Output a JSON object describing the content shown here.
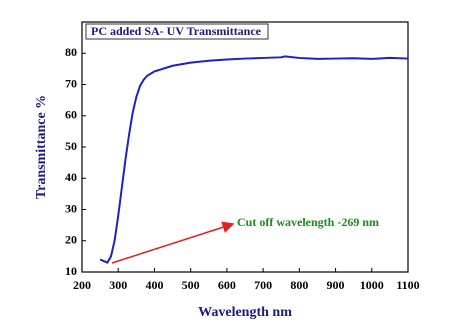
{
  "chart_data": {
    "type": "line",
    "title": "PC  added SA- UV Transmittance",
    "x_label": "Wavelength nm",
    "y_label": "Transmittance %",
    "annotation": "Cut off wavelength -269 nm",
    "x": [
      250,
      260,
      270,
      280,
      290,
      300,
      310,
      320,
      330,
      340,
      350,
      360,
      370,
      380,
      400,
      450,
      500,
      550,
      600,
      650,
      700,
      750,
      760,
      800,
      850,
      900,
      950,
      1000,
      1050,
      1100
    ],
    "series": [
      {
        "name": "PC added SA",
        "color": "#1f1fcc",
        "values": [
          14,
          13.5,
          13,
          15,
          20,
          28,
          37,
          46,
          54,
          61,
          66,
          69.5,
          71.5,
          72.8,
          74.2,
          76,
          77,
          77.6,
          78,
          78.3,
          78.5,
          78.7,
          79,
          78.5,
          78.2,
          78.3,
          78.4,
          78.2,
          78.5,
          78.3
        ]
      }
    ],
    "xlim": [
      200,
      1100
    ],
    "ylim": [
      10,
      90
    ],
    "xticks": [
      200,
      300,
      400,
      500,
      600,
      700,
      800,
      900,
      1000,
      1100
    ],
    "yticks": [
      10,
      20,
      30,
      40,
      50,
      60,
      70,
      80
    ]
  }
}
